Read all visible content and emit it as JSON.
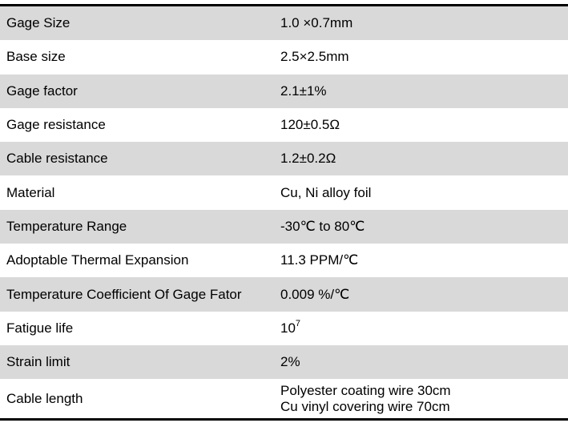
{
  "rows": [
    {
      "label": "Gage Size",
      "value": "1.0 ×0.7mm"
    },
    {
      "label": "Base size",
      "value": "2.5×2.5mm"
    },
    {
      "label": "Gage factor",
      "value": "2.1±1%"
    },
    {
      "label": "Gage resistance",
      "value": "120±0.5Ω"
    },
    {
      "label": "Cable resistance",
      "value": "1.2±0.2Ω"
    },
    {
      "label": "Material",
      "value": "Cu, Ni alloy foil"
    },
    {
      "label": "Temperature Range",
      "value": "-30℃ to 80℃"
    },
    {
      "label": "Adoptable Thermal Expansion",
      "value": "11.3 PPM/℃"
    },
    {
      "label": "Temperature Coefficient Of Gage Fator",
      "value": "0.009 %/℃"
    },
    {
      "label": "Fatigue life",
      "value": "10",
      "exponent": "7"
    },
    {
      "label": "Strain limit",
      "value": "2%"
    },
    {
      "label": "Cable length",
      "value": "Polyester coating wire 30cm",
      "value2": "Cu vinyl covering wire 70cm"
    }
  ],
  "colors": {
    "shaded_row": "#d9d9d9",
    "border": "#000000"
  }
}
